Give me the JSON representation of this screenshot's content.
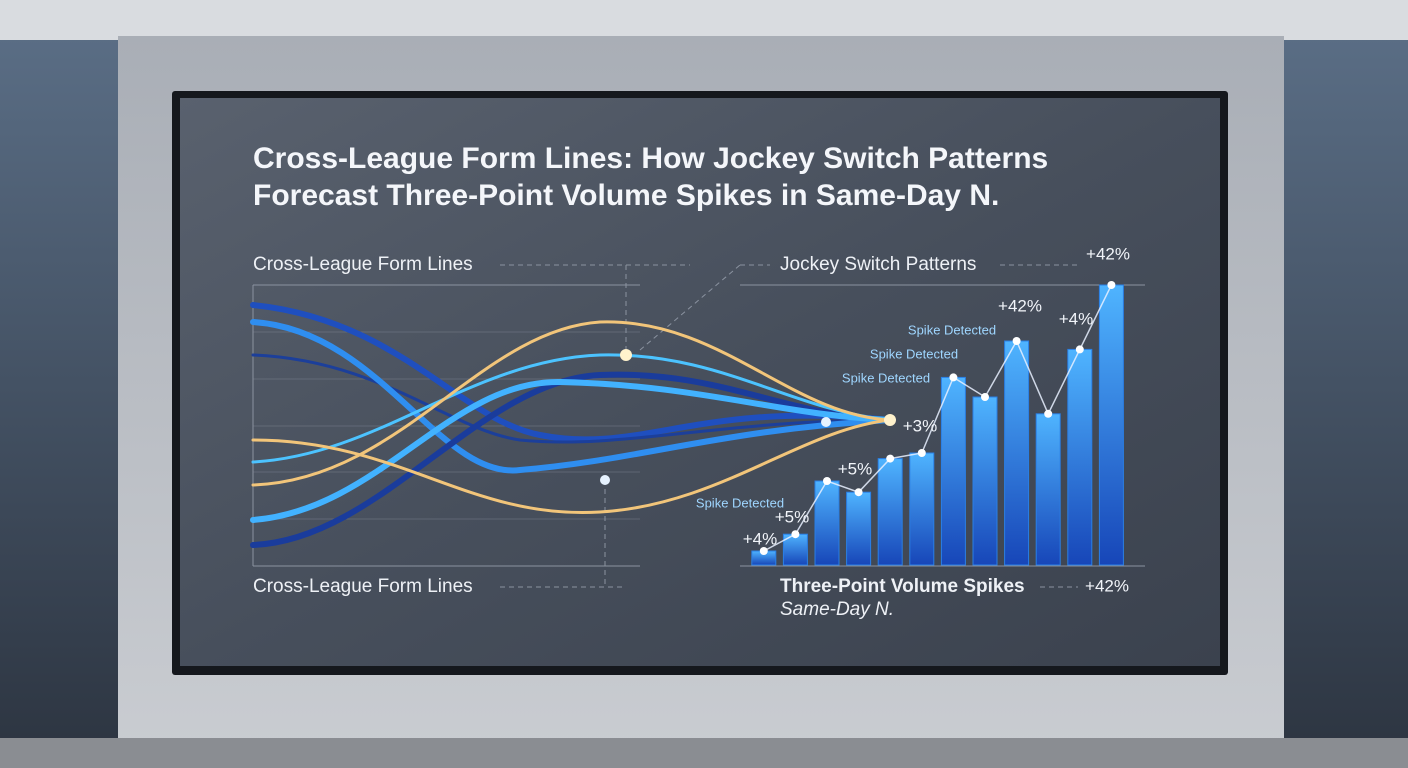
{
  "chart_data": {
    "type": "bar",
    "title": [
      "Cross-League Form Lines: How Jockey Switch Patterns",
      "Forecast Three-Point Volume Spikes in Same-Day N."
    ],
    "left_label_top": "Cross-League Form Lines",
    "left_label_bottom": "Cross-League Form Lines",
    "right_label_top": "Jockey Switch Patterns",
    "x_label": "Three-Point Volume Spikes",
    "subtitle": "Same-Day N.",
    "values": [
      5,
      11,
      30,
      26,
      38,
      40,
      67,
      60,
      80,
      54,
      77,
      100
    ],
    "ylim": [
      0,
      100
    ],
    "color": "#2a7fe6",
    "line_color": "#e8f0ff",
    "annotations": [
      "+4%",
      "+5%",
      "+5%",
      "+3%",
      "Spike Detected",
      "Spike Detected",
      "Spike Detected",
      "Spike Detected",
      "+42%",
      "+4%",
      "+42%",
      "+42%"
    ]
  }
}
